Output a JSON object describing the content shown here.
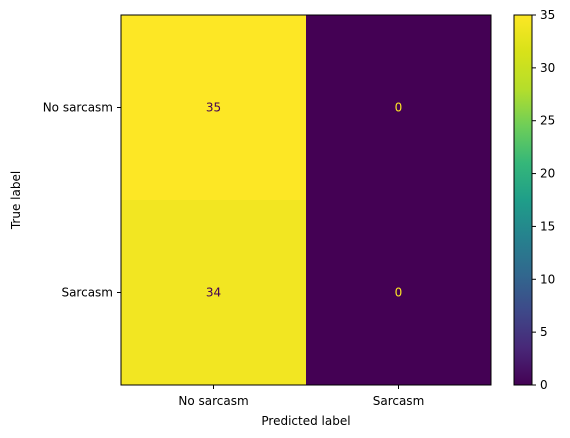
{
  "chart_data": {
    "type": "heatmap",
    "title": "",
    "xlabel": "Predicted label",
    "ylabel": "True label",
    "x_categories": [
      "No sarcasm",
      "Sarcasm"
    ],
    "y_categories": [
      "No sarcasm",
      "Sarcasm"
    ],
    "values": [
      [
        35,
        0
      ],
      [
        34,
        0
      ]
    ],
    "cell_labels": [
      [
        "35",
        "0"
      ],
      [
        "34",
        "0"
      ]
    ],
    "colormap": "viridis",
    "colorbar": {
      "range": [
        0,
        35
      ],
      "ticks": [
        0,
        5,
        10,
        15,
        20,
        25,
        30,
        35
      ],
      "tick_labels": [
        "0",
        "5",
        "10",
        "15",
        "20",
        "25",
        "30",
        "35"
      ]
    },
    "grid": false,
    "colors": {
      "high": "#fde725",
      "low": "#440154",
      "label_on_low": "#fde725",
      "label_on_high": "#440154"
    }
  }
}
